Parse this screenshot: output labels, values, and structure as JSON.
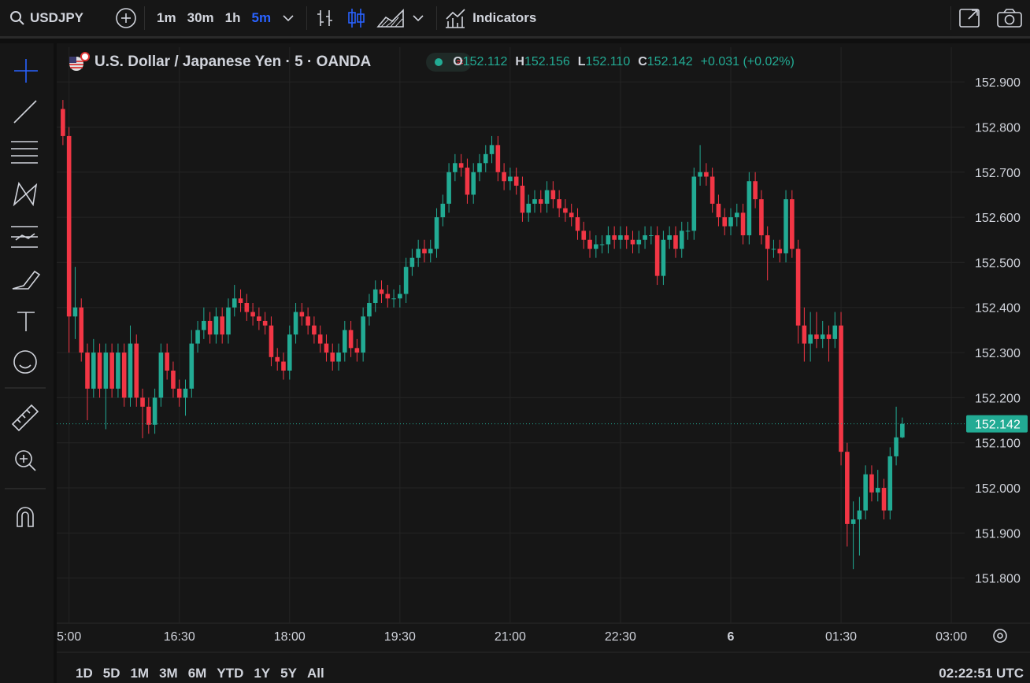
{
  "toolbar": {
    "symbol": "USDJPY",
    "intervals": [
      "1m",
      "30m",
      "1h",
      "5m"
    ],
    "indicators": "Indicators"
  },
  "ranges": [
    "1D",
    "5D",
    "1M",
    "3M",
    "6M",
    "YTD",
    "1Y",
    "5Y",
    "All"
  ],
  "clock": "02:22:51 UTC",
  "chart_data": {
    "type": "candlestick",
    "title": "U.S. Dollar / Japanese Yen · 5 · OANDA",
    "status_line": [
      {
        "key": "O",
        "value": "152.112"
      },
      {
        "key": "H",
        "value": "152.156"
      },
      {
        "key": "L",
        "value": "152.110"
      },
      {
        "key": "C",
        "value": "152.142"
      },
      {
        "key": "",
        "value": "+0.031 (+0.02%)"
      }
    ],
    "up_color": "#22ab94",
    "down_color": "#f23645",
    "grid": true,
    "ylim": [
      151.7,
      152.97
    ],
    "yticks": [
      {
        "value": 151.8,
        "label": "151.800"
      },
      {
        "value": 151.9,
        "label": "151.900"
      },
      {
        "value": 152.0,
        "label": "152.000"
      },
      {
        "value": 152.1,
        "label": "152.100"
      },
      {
        "value": 152.2,
        "label": "152.200"
      },
      {
        "value": 152.3,
        "label": "152.300"
      },
      {
        "value": 152.4,
        "label": "152.400"
      },
      {
        "value": 152.5,
        "label": "152.500"
      },
      {
        "value": 152.6,
        "label": "152.600"
      },
      {
        "value": 152.7,
        "label": "152.700"
      },
      {
        "value": 152.8,
        "label": "152.800"
      },
      {
        "value": 152.9,
        "label": "152.900"
      }
    ],
    "categories": [
      null,
      "5:00",
      null,
      null,
      null,
      null,
      null,
      null,
      null,
      null,
      null,
      null,
      null,
      null,
      null,
      null,
      null,
      null,
      null,
      "16:30",
      null,
      null,
      null,
      null,
      null,
      null,
      null,
      null,
      null,
      null,
      null,
      null,
      null,
      null,
      null,
      null,
      null,
      "18:00",
      null,
      null,
      null,
      null,
      null,
      null,
      null,
      null,
      null,
      null,
      null,
      null,
      null,
      null,
      null,
      null,
      null,
      "19:30",
      null,
      null,
      null,
      null,
      null,
      null,
      null,
      null,
      null,
      null,
      null,
      null,
      null,
      null,
      null,
      null,
      null,
      "21:00",
      null,
      null,
      null,
      null,
      null,
      null,
      null,
      null,
      null,
      null,
      null,
      null,
      null,
      null,
      null,
      null,
      null,
      "22:30",
      null,
      null,
      null,
      null,
      null,
      null,
      null,
      null,
      null,
      null,
      null,
      null,
      null,
      null,
      null,
      null,
      null,
      "6",
      null,
      null,
      null,
      null,
      null,
      null,
      null,
      null,
      null,
      null,
      null,
      null,
      null,
      null,
      null,
      null,
      null,
      "01:30",
      null,
      null,
      null,
      null,
      null,
      null,
      null,
      null,
      null,
      null,
      null,
      null,
      null,
      null,
      null,
      null,
      null,
      "03:00"
    ],
    "open": [
      152.84,
      152.78,
      152.38,
      152.4,
      152.3,
      152.22,
      152.3,
      152.22,
      152.3,
      152.22,
      152.3,
      152.2,
      152.32,
      152.2,
      152.18,
      152.14,
      152.2,
      152.3,
      152.26,
      152.22,
      152.2,
      152.22,
      152.32,
      152.35,
      152.37,
      152.34,
      152.38,
      152.34,
      152.4,
      152.42,
      152.41,
      152.39,
      152.38,
      152.37,
      152.36,
      152.29,
      152.28,
      152.26,
      152.34,
      152.39,
      152.38,
      152.36,
      152.34,
      152.32,
      152.3,
      152.28,
      152.3,
      152.35,
      152.31,
      152.3,
      152.38,
      152.41,
      152.44,
      152.43,
      152.42,
      152.42,
      152.43,
      152.49,
      152.51,
      152.53,
      152.52,
      152.53,
      152.6,
      152.63,
      152.7,
      152.72,
      152.71,
      152.65,
      152.7,
      152.72,
      152.74,
      152.76,
      152.7,
      152.68,
      152.69,
      152.67,
      152.61,
      152.63,
      152.64,
      152.63,
      152.66,
      152.64,
      152.62,
      152.61,
      152.6,
      152.57,
      152.55,
      152.53,
      152.54,
      152.54,
      152.56,
      152.55,
      152.56,
      152.55,
      152.54,
      152.55,
      152.56,
      152.56,
      152.47,
      152.55,
      152.56,
      152.53,
      152.57,
      152.57,
      152.69,
      152.7,
      152.69,
      152.63,
      152.6,
      152.58,
      152.6,
      152.61,
      152.56,
      152.68,
      152.64,
      152.56,
      152.53,
      152.53,
      152.52,
      152.64,
      152.53,
      152.36,
      152.32,
      152.34,
      152.33,
      152.34,
      152.33,
      152.36,
      152.08,
      151.92,
      151.93,
      151.95,
      152.03,
      151.99,
      152.0,
      151.95,
      152.07,
      152.112,
      null,
      null,
      null,
      null,
      null,
      null,
      null,
      null
    ],
    "high": [
      152.86,
      152.8,
      152.49,
      152.42,
      152.32,
      152.33,
      152.32,
      152.32,
      152.32,
      152.32,
      152.32,
      152.36,
      152.34,
      152.22,
      152.2,
      152.22,
      152.32,
      152.32,
      152.28,
      152.24,
      152.24,
      152.35,
      152.37,
      152.4,
      152.39,
      152.4,
      152.4,
      152.42,
      152.45,
      152.44,
      152.43,
      152.41,
      152.4,
      152.39,
      152.38,
      152.31,
      152.3,
      152.36,
      152.41,
      152.41,
      152.4,
      152.38,
      152.36,
      152.34,
      152.32,
      152.32,
      152.37,
      152.37,
      152.33,
      152.4,
      152.43,
      152.46,
      152.46,
      152.45,
      152.44,
      152.45,
      152.51,
      152.53,
      152.55,
      152.55,
      152.55,
      152.62,
      152.65,
      152.72,
      152.74,
      152.74,
      152.73,
      152.72,
      152.74,
      152.76,
      152.78,
      152.78,
      152.72,
      152.71,
      152.71,
      152.69,
      152.65,
      152.66,
      152.66,
      152.68,
      152.68,
      152.66,
      152.64,
      152.63,
      152.62,
      152.59,
      152.57,
      152.56,
      152.56,
      152.58,
      152.58,
      152.58,
      152.58,
      152.57,
      152.57,
      152.58,
      152.58,
      152.58,
      152.57,
      152.58,
      152.58,
      152.59,
      152.59,
      152.71,
      152.76,
      152.72,
      152.71,
      152.65,
      152.62,
      152.62,
      152.63,
      152.63,
      152.7,
      152.7,
      152.66,
      152.58,
      152.55,
      152.55,
      152.66,
      152.66,
      152.55,
      152.4,
      152.39,
      152.39,
      152.37,
      152.36,
      152.39,
      152.39,
      152.1,
      151.97,
      151.98,
      152.05,
      152.05,
      152.04,
      152.02,
      152.09,
      152.18,
      152.156,
      null,
      null,
      null,
      null,
      null,
      null,
      null,
      null
    ],
    "low": [
      152.76,
      152.3,
      152.33,
      152.28,
      152.15,
      152.2,
      152.2,
      152.13,
      152.2,
      152.2,
      152.18,
      152.18,
      152.18,
      152.11,
      152.12,
      152.12,
      152.18,
      152.24,
      152.2,
      152.18,
      152.16,
      152.2,
      152.3,
      152.33,
      152.32,
      152.32,
      152.32,
      152.32,
      152.38,
      152.39,
      152.37,
      152.36,
      152.35,
      152.34,
      152.27,
      152.26,
      152.24,
      152.24,
      152.32,
      152.36,
      152.34,
      152.32,
      152.3,
      152.28,
      152.26,
      152.26,
      152.28,
      152.29,
      152.28,
      152.28,
      152.36,
      152.39,
      152.41,
      152.4,
      152.4,
      152.4,
      152.41,
      152.47,
      152.49,
      152.5,
      152.5,
      152.51,
      152.58,
      152.61,
      152.68,
      152.69,
      152.63,
      152.63,
      152.68,
      152.7,
      152.72,
      152.68,
      152.66,
      152.66,
      152.65,
      152.59,
      152.59,
      152.61,
      152.61,
      152.61,
      152.62,
      152.6,
      152.59,
      152.58,
      152.55,
      152.53,
      152.51,
      152.51,
      152.52,
      152.52,
      152.53,
      152.53,
      152.53,
      152.52,
      152.52,
      152.53,
      152.54,
      152.45,
      152.45,
      152.53,
      152.51,
      152.51,
      152.55,
      152.55,
      152.67,
      152.67,
      152.61,
      152.58,
      152.56,
      152.56,
      152.58,
      152.54,
      152.54,
      152.62,
      152.54,
      152.46,
      152.51,
      152.5,
      152.5,
      152.51,
      152.32,
      152.28,
      152.28,
      152.31,
      152.31,
      152.28,
      152.31,
      152.05,
      151.87,
      151.82,
      151.85,
      151.93,
      151.97,
      151.97,
      151.93,
      151.93,
      152.05,
      152.11,
      null,
      null,
      null,
      null,
      null,
      null,
      null,
      null
    ],
    "close": [
      152.78,
      152.38,
      152.4,
      152.3,
      152.22,
      152.3,
      152.22,
      152.3,
      152.22,
      152.3,
      152.2,
      152.32,
      152.2,
      152.18,
      152.14,
      152.2,
      152.3,
      152.26,
      152.22,
      152.2,
      152.22,
      152.32,
      152.35,
      152.37,
      152.34,
      152.38,
      152.34,
      152.4,
      152.42,
      152.41,
      152.39,
      152.38,
      152.37,
      152.36,
      152.29,
      152.28,
      152.26,
      152.34,
      152.39,
      152.38,
      152.36,
      152.34,
      152.32,
      152.3,
      152.28,
      152.3,
      152.35,
      152.31,
      152.3,
      152.38,
      152.41,
      152.44,
      152.43,
      152.42,
      152.42,
      152.43,
      152.49,
      152.51,
      152.53,
      152.52,
      152.53,
      152.6,
      152.63,
      152.7,
      152.72,
      152.71,
      152.65,
      152.7,
      152.72,
      152.74,
      152.76,
      152.7,
      152.68,
      152.69,
      152.67,
      152.61,
      152.63,
      152.64,
      152.63,
      152.66,
      152.64,
      152.62,
      152.61,
      152.6,
      152.57,
      152.55,
      152.53,
      152.54,
      152.54,
      152.56,
      152.55,
      152.56,
      152.55,
      152.54,
      152.55,
      152.56,
      152.56,
      152.47,
      152.55,
      152.56,
      152.53,
      152.57,
      152.57,
      152.69,
      152.7,
      152.69,
      152.63,
      152.6,
      152.58,
      152.6,
      152.61,
      152.56,
      152.68,
      152.64,
      152.56,
      152.53,
      152.53,
      152.52,
      152.64,
      152.53,
      152.36,
      152.32,
      152.34,
      152.33,
      152.34,
      152.33,
      152.36,
      152.08,
      151.92,
      151.93,
      151.95,
      152.03,
      151.99,
      152.0,
      151.95,
      152.07,
      152.112,
      152.142,
      null,
      null,
      null,
      null,
      null,
      null,
      null,
      null
    ]
  }
}
